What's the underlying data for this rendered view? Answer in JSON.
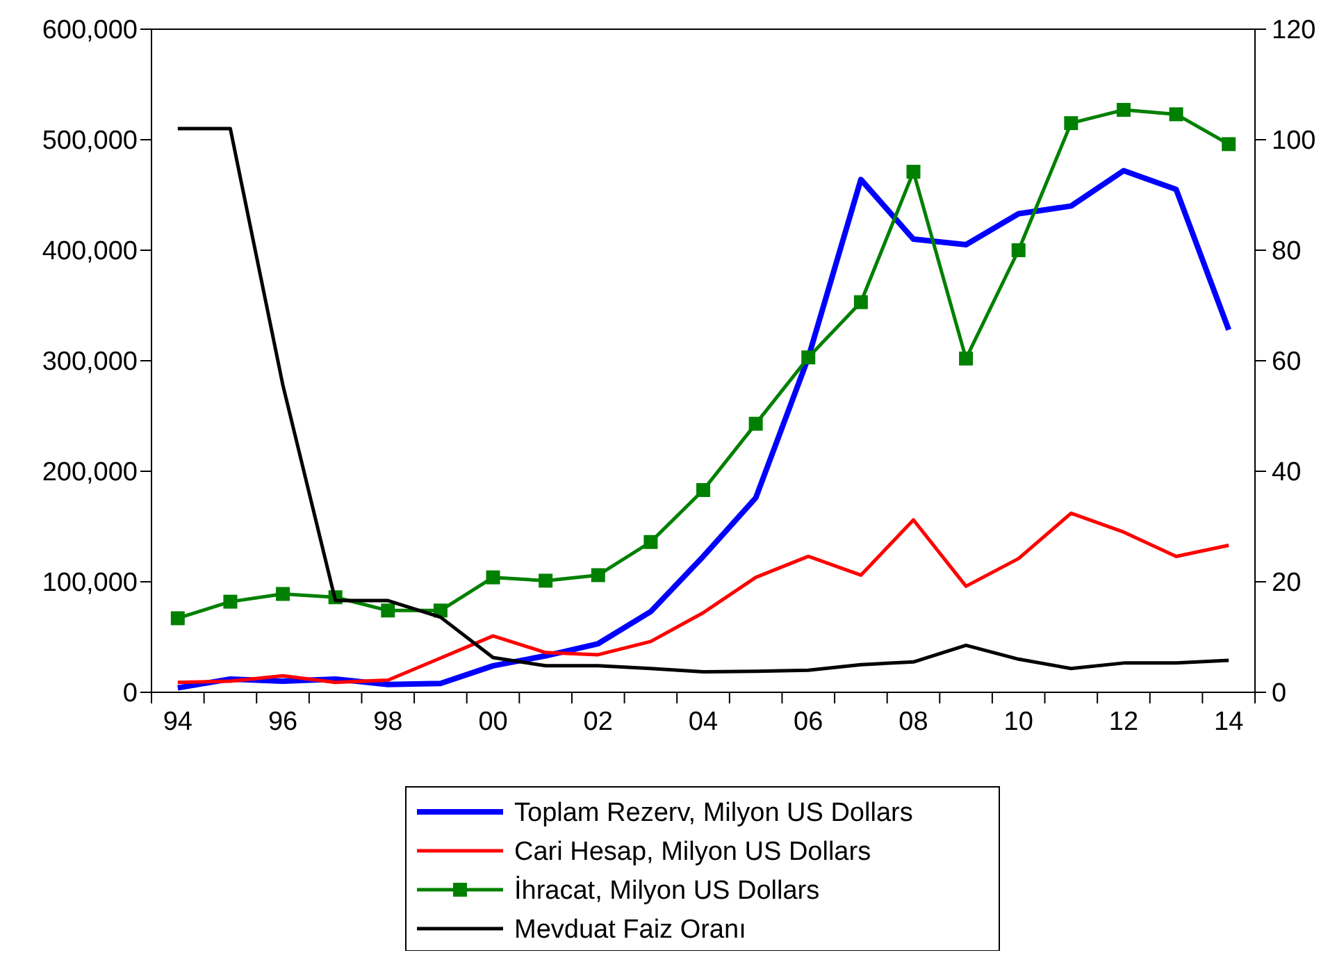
{
  "chart_data": {
    "type": "line",
    "categories": [
      "94",
      null,
      "96",
      null,
      "98",
      null,
      "00",
      null,
      "02",
      null,
      "04",
      null,
      "06",
      null,
      "08",
      null,
      "10",
      null,
      "12",
      null,
      "14"
    ],
    "ylim": [
      0,
      600000
    ],
    "yticks": [
      {
        "value": 0,
        "label": "0"
      },
      {
        "value": 100000,
        "label": "100,000"
      },
      {
        "value": 200000,
        "label": "200,000"
      },
      {
        "value": 300000,
        "label": "300,000"
      },
      {
        "value": 400000,
        "label": "400,000"
      },
      {
        "value": 500000,
        "label": "500,000"
      },
      {
        "value": 600000,
        "label": "600,000"
      }
    ],
    "y2lim": [
      0,
      120
    ],
    "y2ticks": [
      0,
      20,
      40,
      60,
      80,
      100,
      120
    ],
    "legend": "bottom",
    "grid": false,
    "series": [
      {
        "name": "Toplam Rezerv, Milyon US Dollars",
        "color": "#0000ff",
        "marker": "none",
        "values": [
          4000,
          12000,
          10000,
          12000,
          7000,
          8000,
          24000,
          33000,
          44000,
          73000,
          123000,
          176000,
          303000,
          464000,
          410000,
          405000,
          433000,
          440000,
          472000,
          455000,
          328000
        ]
      },
      {
        "name": "Cari Hesap, Milyon US Dollars",
        "color": "#ff0000",
        "marker": "none",
        "values": [
          9000,
          10000,
          15000,
          9000,
          11000,
          31000,
          51000,
          36000,
          34000,
          46000,
          72000,
          104000,
          123000,
          106000,
          156000,
          96000,
          121000,
          162000,
          145000,
          123000,
          133000
        ]
      },
      {
        "name": "İhracat, Milyon US Dollars",
        "color": "#008000",
        "marker": "square",
        "values": [
          67000,
          82000,
          89000,
          86000,
          74000,
          74000,
          104000,
          101000,
          106000,
          136000,
          183000,
          243000,
          303000,
          353000,
          471000,
          302000,
          400000,
          515000,
          527000,
          523000,
          496000
        ]
      },
      {
        "name": "Mevduat Faiz Oranı",
        "color": "#000000",
        "marker": "none",
        "axis": "y2",
        "values": [
          102,
          102,
          55.6,
          16.6,
          16.6,
          13.6,
          6.3,
          4.8,
          4.8,
          4.3,
          3.7,
          3.8,
          4.0,
          5.0,
          5.5,
          8.5,
          6.0,
          4.3,
          5.3,
          5.3,
          5.8
        ]
      }
    ]
  }
}
